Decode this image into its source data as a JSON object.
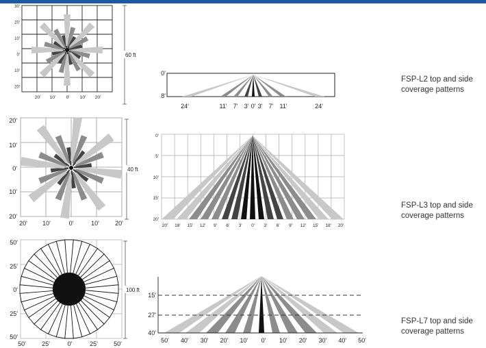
{
  "colors": {
    "top_bar": "#1a5aa6",
    "light": "#c8c8c8",
    "mid": "#8c8c8c",
    "dark": "#444444",
    "black": "#111111",
    "line": "#222222"
  },
  "rows": [
    {
      "id": "l2",
      "caption": [
        "FSP-L2 top and side",
        "coverage patterns"
      ],
      "top_view": {
        "dimension": "60 ft",
        "left_labels": [
          "30'",
          "20'",
          "10'",
          "0'",
          "10'",
          "20'"
        ],
        "bottom_labels": [
          "20'",
          "10'",
          "0'",
          "10'",
          "20'"
        ]
      },
      "side_view": {
        "height_labels": [
          "0'",
          "8'"
        ],
        "distance_labels": [
          "24'",
          "11'",
          "7'",
          "3'",
          "0'",
          "3'",
          "7'",
          "11'",
          "24'"
        ]
      }
    },
    {
      "id": "l3",
      "caption": [
        "FSP-L3 top and side",
        "coverage patterns"
      ],
      "top_view": {
        "dimension": "40 ft",
        "left_labels": [
          "20'",
          "10'",
          "0'",
          "10'",
          "20'"
        ],
        "bottom_labels": [
          "20'",
          "10'",
          "0'",
          "10'",
          "20'"
        ]
      },
      "side_view": {
        "height_labels": [
          "0'",
          "5'",
          "10'",
          "15'",
          "20'"
        ],
        "distance_labels": [
          "20'",
          "18'",
          "15'",
          "12'",
          "9'",
          "6'",
          "3'",
          "0'",
          "3'",
          "6'",
          "9'",
          "12'",
          "15'",
          "18'",
          "20'"
        ]
      }
    },
    {
      "id": "l7",
      "caption": [
        "FSP-L7 top and side",
        "coverage patterns"
      ],
      "top_view": {
        "dimension": "100 ft",
        "left_labels": [
          "50'",
          "25'",
          "0'",
          "25'",
          "50'"
        ],
        "bottom_labels": [
          "50'",
          "25'",
          "0'",
          "25'",
          "50'"
        ]
      },
      "side_view": {
        "height_labels": [
          "15'",
          "27'",
          "40'"
        ],
        "distance_labels": [
          "50'",
          "40'",
          "30'",
          "20'",
          "10'",
          "0'",
          "10'",
          "20'",
          "30'",
          "40'",
          "50'"
        ]
      }
    }
  ]
}
